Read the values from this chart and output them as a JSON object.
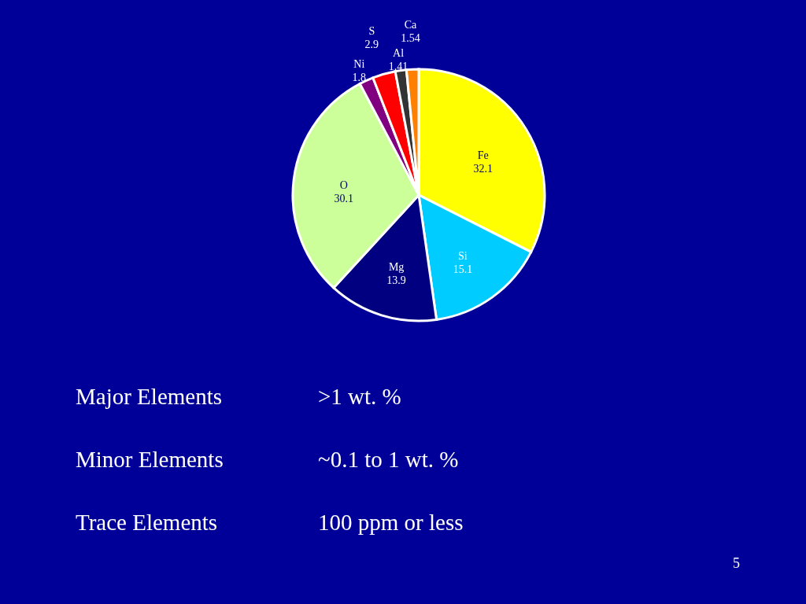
{
  "chart_data": {
    "type": "pie",
    "categories": [
      "Fe",
      "Si",
      "Mg",
      "O",
      "Ni",
      "S",
      "Al",
      "Ca"
    ],
    "values": [
      32.1,
      15.1,
      13.9,
      30.1,
      1.8,
      2.9,
      1.41,
      1.54
    ],
    "colors": [
      "#ffff00",
      "#00ccff",
      "#000080",
      "#ccff99",
      "#800080",
      "#ff0000",
      "#333333",
      "#ff8000"
    ],
    "data_labels": true,
    "annotations": [
      "Major Elements",
      ">1 wt. %",
      "Minor Elements",
      "~0.1 to 1 wt. %",
      "Trace Elements",
      "100 ppm or less",
      "5"
    ]
  }
}
